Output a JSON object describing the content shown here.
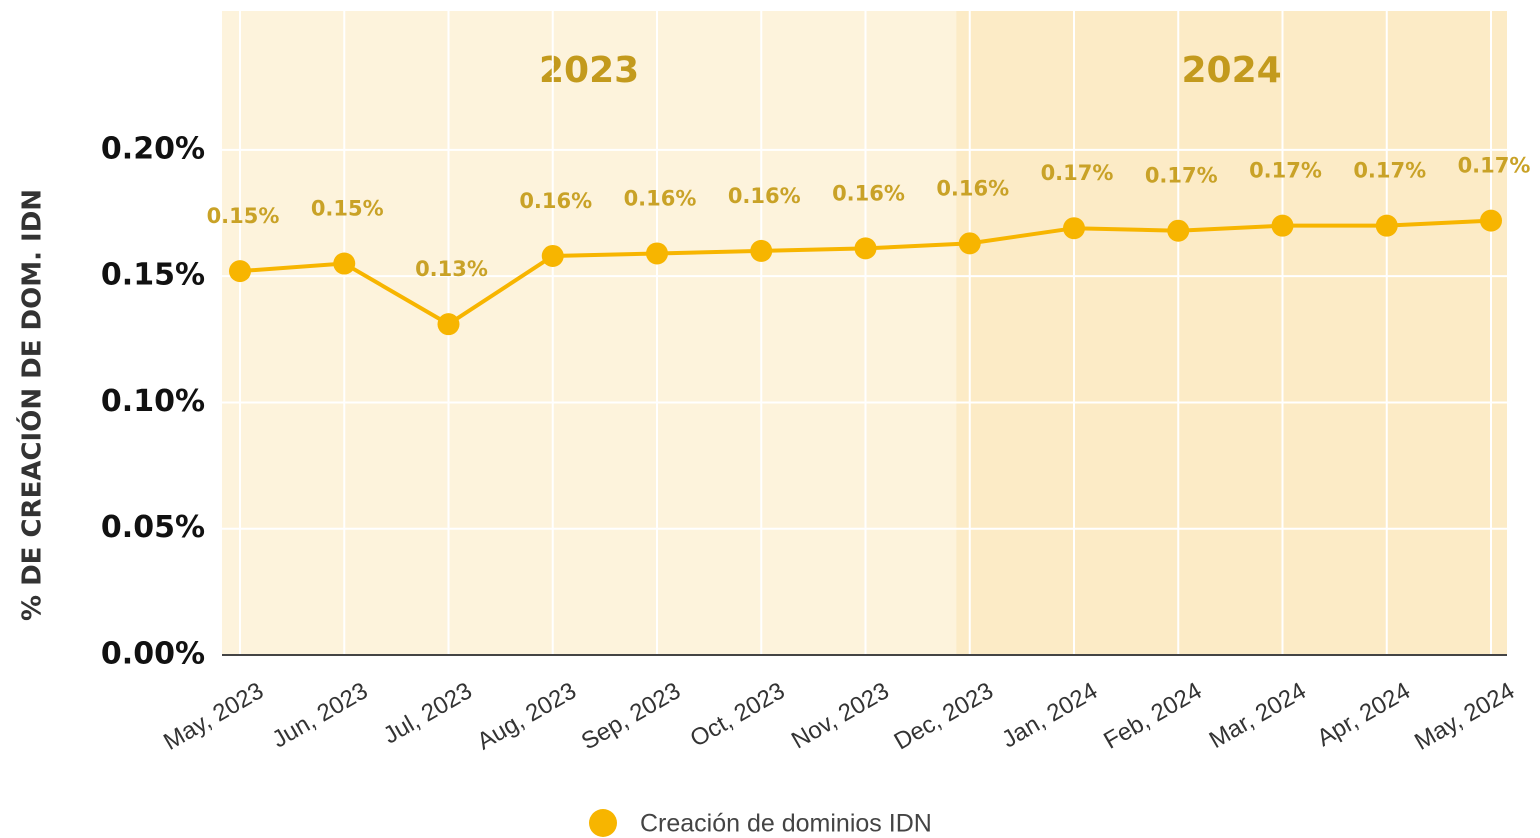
{
  "chart_data": {
    "type": "line",
    "y_label": "% DE CREACIÓN DE DOM. IDN",
    "categories": [
      "May, 2023",
      "Jun, 2023",
      "Jul, 2023",
      "Aug, 2023",
      "Sep, 2023",
      "Oct, 2023",
      "Nov, 2023",
      "Dec, 2023",
      "Jan, 2024",
      "Feb, 2024",
      "Mar, 2024",
      "Apr, 2024",
      "May, 2024"
    ],
    "series": [
      {
        "name": "Creación de dominios IDN",
        "color": "#f7b500",
        "values": [
          0.152,
          0.155,
          0.131,
          0.158,
          0.159,
          0.16,
          0.161,
          0.163,
          0.169,
          0.168,
          0.17,
          0.17,
          0.172
        ],
        "value_labels": [
          "0.15%",
          "0.15%",
          "0.13%",
          "0.16%",
          "0.16%",
          "0.16%",
          "0.16%",
          "0.16%",
          "0.17%",
          "0.17%",
          "0.17%",
          "0.17%",
          "0.17%"
        ]
      }
    ],
    "bands": [
      {
        "label": "2023",
        "start": 0,
        "color": "#fdf3dc"
      },
      {
        "label": "2024",
        "start": 8,
        "color": "#fcebc6"
      }
    ],
    "ylim": [
      0,
      0.255
    ],
    "yticks": [
      {
        "value": 0,
        "label": "0.00%"
      },
      {
        "value": 0.05,
        "label": "0.05%"
      },
      {
        "value": 0.1,
        "label": "0.10%"
      },
      {
        "value": 0.15,
        "label": "0.15%"
      },
      {
        "value": 0.2,
        "label": "0.20%"
      }
    ],
    "grid": true,
    "legend": "bottom"
  }
}
